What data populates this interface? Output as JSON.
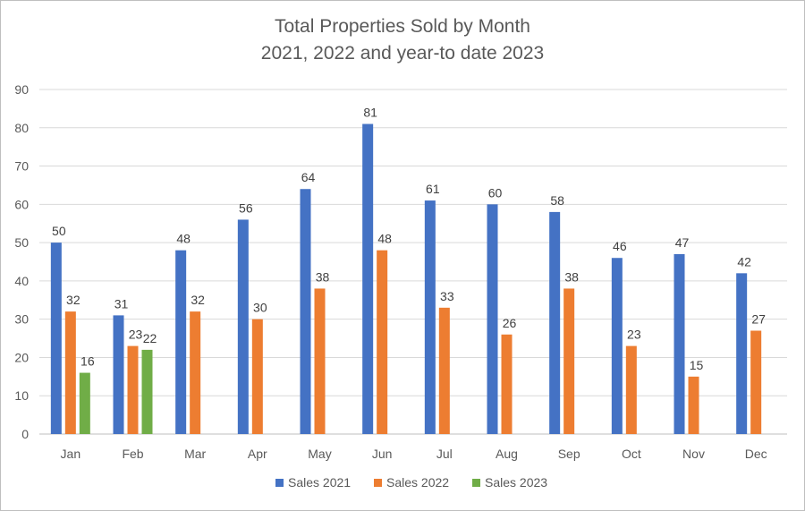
{
  "chart_data": {
    "type": "bar",
    "title": "Total Properties Sold by Month",
    "subtitle": "2021, 2022 and year-to date 2023",
    "categories": [
      "Jan",
      "Feb",
      "Mar",
      "Apr",
      "May",
      "Jun",
      "Jul",
      "Aug",
      "Sep",
      "Oct",
      "Nov",
      "Dec"
    ],
    "series": [
      {
        "name": "Sales 2021",
        "color": "#4472c4",
        "values": [
          50,
          31,
          48,
          56,
          64,
          81,
          61,
          60,
          58,
          46,
          47,
          42
        ]
      },
      {
        "name": "Sales 2022",
        "color": "#ed7d31",
        "values": [
          32,
          23,
          32,
          30,
          38,
          48,
          33,
          26,
          38,
          23,
          15,
          27
        ]
      },
      {
        "name": "Sales 2023",
        "color": "#70ad47",
        "values": [
          16,
          22,
          null,
          null,
          null,
          null,
          null,
          null,
          null,
          null,
          null,
          null
        ]
      }
    ],
    "ylim": [
      0,
      90
    ],
    "yticks": [
      0,
      10,
      20,
      30,
      40,
      50,
      60,
      70,
      80,
      90
    ],
    "grid": true,
    "legend_position": "bottom",
    "data_labels": true
  }
}
